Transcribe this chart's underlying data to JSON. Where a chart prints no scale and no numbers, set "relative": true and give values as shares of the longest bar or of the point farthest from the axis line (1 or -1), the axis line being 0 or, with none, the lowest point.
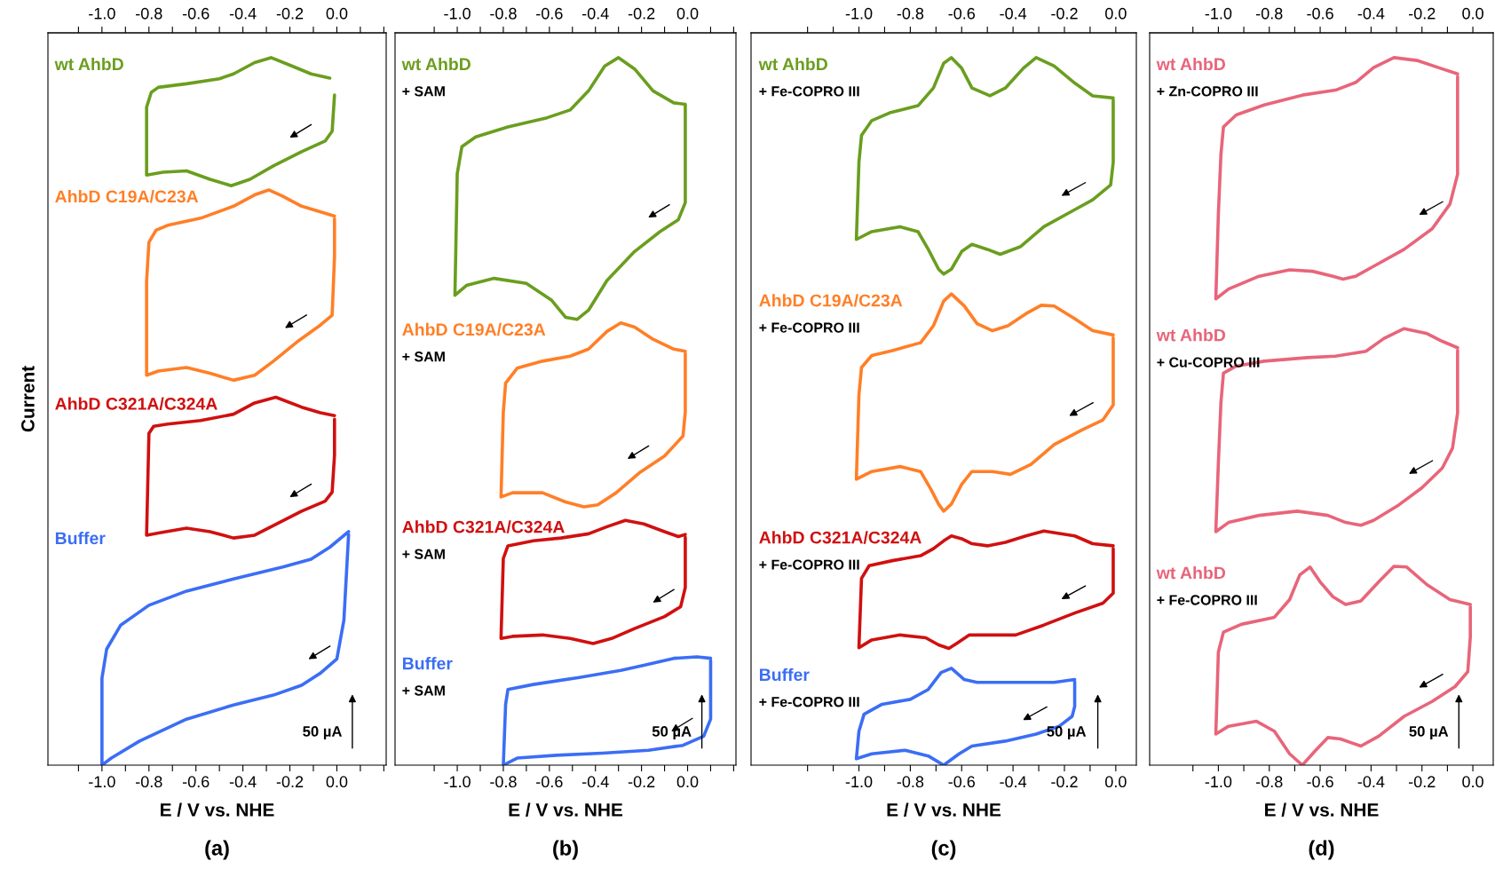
{
  "chart_data": [
    {
      "type": "line",
      "relative": true,
      "xlabel": "E / V vs. NHE",
      "ylabel": "Current",
      "xlim": [
        -1.23,
        0.21
      ],
      "x2lim": [
        -1.23,
        0.21
      ],
      "xticks": [
        {
          "value": -1.1,
          "label": null
        },
        {
          "value": -1,
          "label": "-1.0"
        },
        {
          "value": -0.9,
          "label": null
        },
        -0.8,
        {
          "value": -0.7,
          "label": null
        },
        -0.6,
        {
          "value": -0.5,
          "label": null
        },
        -0.4,
        {
          "value": -0.3,
          "label": null
        },
        -0.2,
        {
          "value": -0.1,
          "label": null
        },
        {
          "value": 0,
          "label": "0.0"
        },
        {
          "value": 0.1,
          "label": null
        },
        {
          "value": 0.2,
          "label": null
        }
      ],
      "x2ticks": [
        {
          "value": -1.1,
          "label": null
        },
        {
          "value": -1,
          "label": "-1.0"
        },
        {
          "value": -0.9,
          "label": null
        },
        -0.8,
        {
          "value": -0.7,
          "label": null
        },
        -0.6,
        {
          "value": -0.5,
          "label": null
        },
        -0.4,
        {
          "value": -0.3,
          "label": null
        },
        -0.2,
        {
          "value": -0.1,
          "label": null
        },
        {
          "value": 0,
          "label": "0.0"
        },
        {
          "value": 0.1,
          "label": null
        },
        {
          "value": 0.2,
          "label": null
        }
      ],
      "series": [
        {
          "name": "wt AhbD",
          "color": "#6a9e1f",
          "x": [
            -0.03,
            -0.11,
            -0.19,
            -0.28,
            -0.35,
            -0.44,
            -0.5,
            -0.64,
            -0.76,
            -0.79,
            -0.81,
            -0.81,
            -0.74,
            -0.64,
            -0.54,
            -0.45,
            -0.37,
            -0.27,
            -0.15,
            -0.05,
            -0.02,
            -0.01
          ],
          "values": [
            0.971,
            0.977,
            0.988,
            1.0,
            0.993,
            0.977,
            0.97,
            0.963,
            0.958,
            0.951,
            0.93,
            0.834,
            0.838,
            0.84,
            0.828,
            0.819,
            0.828,
            0.847,
            0.867,
            0.882,
            0.896,
            0.947
          ]
        },
        {
          "name": "AhbD C19A/C23A",
          "color": "#ff7f27",
          "x": [
            -0.01,
            -0.05,
            -0.15,
            -0.23,
            -0.29,
            -0.35,
            -0.44,
            -0.58,
            -0.72,
            -0.77,
            -0.8,
            -0.81,
            -0.81,
            -0.76,
            -0.64,
            -0.54,
            -0.44,
            -0.35,
            -0.27,
            -0.17,
            -0.07,
            -0.02,
            -0.01,
            -0.01
          ],
          "values": [
            0.776,
            0.78,
            0.79,
            0.804,
            0.813,
            0.806,
            0.79,
            0.773,
            0.763,
            0.756,
            0.739,
            0.684,
            0.551,
            0.557,
            0.562,
            0.554,
            0.544,
            0.551,
            0.571,
            0.598,
            0.622,
            0.636,
            0.718,
            0.772
          ]
        },
        {
          "name": "AhbD C321A/C324A",
          "color": "#d01010",
          "x": [
            -0.01,
            -0.07,
            -0.15,
            -0.26,
            -0.35,
            -0.44,
            -0.58,
            -0.72,
            -0.78,
            -0.8,
            -0.81,
            -0.76,
            -0.64,
            -0.54,
            -0.44,
            -0.35,
            -0.25,
            -0.15,
            -0.05,
            -0.02,
            -0.01,
            -0.01
          ],
          "values": [
            0.494,
            0.498,
            0.506,
            0.52,
            0.512,
            0.496,
            0.487,
            0.482,
            0.479,
            0.469,
            0.325,
            0.328,
            0.335,
            0.33,
            0.321,
            0.325,
            0.342,
            0.359,
            0.373,
            0.386,
            0.438,
            0.489
          ]
        },
        {
          "name": "Buffer",
          "color": "#3b6ef5",
          "x": [
            0.05,
            -0.03,
            -0.11,
            -0.23,
            -0.44,
            -0.64,
            -0.8,
            -0.92,
            -0.98,
            -1.0,
            -1.0,
            -0.96,
            -0.84,
            -0.64,
            -0.44,
            -0.27,
            -0.15,
            -0.07,
            0.0,
            0.03,
            0.05
          ],
          "values": [
            0.33,
            0.308,
            0.291,
            0.28,
            0.263,
            0.246,
            0.226,
            0.198,
            0.164,
            0.123,
            0,
            0.01,
            0.034,
            0.065,
            0.085,
            0.099,
            0.113,
            0.13,
            0.15,
            0.205,
            0.326
          ]
        }
      ],
      "annotations": [
        "50 µA",
        "(a)"
      ]
    },
    {
      "type": "line",
      "relative": true,
      "xlabel": "E / V vs. NHE",
      "xlim": [
        -1.27,
        0.21
      ],
      "x2lim": [
        -1.27,
        0.21
      ],
      "xticks": [
        {
          "value": -1.1,
          "label": null
        },
        {
          "value": -1,
          "label": "-1.0"
        },
        {
          "value": -0.9,
          "label": null
        },
        -0.8,
        {
          "value": -0.7,
          "label": null
        },
        -0.6,
        {
          "value": -0.5,
          "label": null
        },
        -0.4,
        {
          "value": -0.3,
          "label": null
        },
        -0.2,
        {
          "value": -0.1,
          "label": null
        },
        {
          "value": 0,
          "label": "0.0"
        },
        {
          "value": 0.1,
          "label": null
        },
        {
          "value": 0.2,
          "label": null
        }
      ],
      "x2ticks": [
        {
          "value": -1.1,
          "label": null
        },
        {
          "value": -1,
          "label": "-1.0"
        },
        {
          "value": -0.9,
          "label": null
        },
        -0.8,
        {
          "value": -0.7,
          "label": null
        },
        -0.6,
        {
          "value": -0.5,
          "label": null
        },
        -0.4,
        {
          "value": -0.3,
          "label": null
        },
        -0.2,
        {
          "value": -0.1,
          "label": null
        },
        {
          "value": 0,
          "label": "0.0"
        },
        {
          "value": 0.1,
          "label": null
        },
        {
          "value": 0.2,
          "label": null
        }
      ],
      "series": [
        {
          "name": "wt AhbD\n+ SAM",
          "color": "#6a9e1f",
          "x": [
            -0.01,
            -0.06,
            -0.15,
            -0.23,
            -0.3,
            -0.36,
            -0.43,
            -0.51,
            -0.61,
            -0.78,
            -0.92,
            -0.98,
            -1.0,
            -1.01,
            -0.96,
            -0.84,
            -0.7,
            -0.59,
            -0.53,
            -0.48,
            -0.43,
            -0.35,
            -0.23,
            -0.12,
            -0.04,
            -0.01,
            -0.01,
            -0.01
          ],
          "values": [
            0.934,
            0.936,
            0.953,
            0.984,
            1.0,
            0.988,
            0.953,
            0.926,
            0.915,
            0.902,
            0.888,
            0.874,
            0.836,
            0.664,
            0.678,
            0.688,
            0.681,
            0.657,
            0.633,
            0.63,
            0.643,
            0.685,
            0.726,
            0.754,
            0.771,
            0.795,
            0.871,
            0.933
          ]
        },
        {
          "name": "AhbD C19A/C23A\n+ SAM",
          "color": "#ff7f27",
          "x": [
            -0.01,
            -0.06,
            -0.15,
            -0.23,
            -0.29,
            -0.35,
            -0.43,
            -0.51,
            -0.63,
            -0.74,
            -0.79,
            -0.8,
            -0.81,
            -0.76,
            -0.63,
            -0.53,
            -0.45,
            -0.39,
            -0.31,
            -0.21,
            -0.1,
            -0.02,
            -0.01,
            -0.01
          ],
          "values": [
            0.585,
            0.588,
            0.602,
            0.619,
            0.625,
            0.613,
            0.588,
            0.578,
            0.571,
            0.561,
            0.54,
            0.499,
            0.379,
            0.385,
            0.385,
            0.372,
            0.365,
            0.368,
            0.385,
            0.413,
            0.437,
            0.465,
            0.499,
            0.582
          ]
        },
        {
          "name": "AhbD C321A/C324A\n+ SAM",
          "color": "#d01010",
          "x": [
            -0.01,
            -0.04,
            -0.1,
            -0.19,
            -0.27,
            -0.35,
            -0.43,
            -0.55,
            -0.67,
            -0.78,
            -0.8,
            -0.81,
            -0.76,
            -0.63,
            -0.51,
            -0.41,
            -0.33,
            -0.23,
            -0.1,
            -0.03,
            -0.01,
            -0.01
          ],
          "values": [
            0.326,
            0.323,
            0.33,
            0.341,
            0.346,
            0.337,
            0.327,
            0.321,
            0.317,
            0.31,
            0.292,
            0.179,
            0.182,
            0.184,
            0.179,
            0.172,
            0.179,
            0.193,
            0.21,
            0.224,
            0.251,
            0.322
          ]
        },
        {
          "name": "Buffer\n+ SAM",
          "color": "#3b6ef5",
          "x": [
            0.1,
            0.04,
            -0.06,
            -0.19,
            -0.29,
            -0.47,
            -0.67,
            -0.78,
            -0.79,
            -0.8,
            -0.74,
            -0.57,
            -0.37,
            -0.17,
            -0.02,
            0.07,
            0.1,
            0.1
          ],
          "values": [
            0.151,
            0.153,
            0.151,
            0.141,
            0.134,
            0.124,
            0.114,
            0.107,
            0.086,
            0,
            0.01,
            0.014,
            0.017,
            0.021,
            0.028,
            0.041,
            0.065,
            0.148
          ]
        }
      ],
      "annotations": [
        "50 µA",
        "(b)"
      ]
    },
    {
      "type": "line",
      "relative": true,
      "xlabel": "E / V vs. NHE",
      "xlim": [
        -1.42,
        0.08
      ],
      "x2lim": [
        -1.42,
        0.08
      ],
      "xticks": [
        {
          "value": -1.2,
          "label": null
        },
        {
          "value": -1.1,
          "label": null
        },
        {
          "value": -1,
          "label": "-1.0"
        },
        {
          "value": -0.9,
          "label": null
        },
        -0.8,
        {
          "value": -0.7,
          "label": null
        },
        -0.6,
        {
          "value": -0.5,
          "label": null
        },
        -0.4,
        {
          "value": -0.3,
          "label": null
        },
        -0.2,
        {
          "value": -0.1,
          "label": null
        },
        {
          "value": 0,
          "label": "0.0"
        }
      ],
      "x2ticks": [
        {
          "value": -1.2,
          "label": null
        },
        {
          "value": -1.1,
          "label": null
        },
        {
          "value": -1,
          "label": "-1.0"
        },
        {
          "value": -0.9,
          "label": null
        },
        -0.8,
        {
          "value": -0.7,
          "label": null
        },
        -0.6,
        {
          "value": -0.5,
          "label": null
        },
        -0.4,
        {
          "value": -0.3,
          "label": null
        },
        -0.2,
        {
          "value": -0.1,
          "label": null
        },
        {
          "value": 0,
          "label": "0.0"
        }
      ],
      "series": [
        {
          "name": "wt AhbD\n+ Fe-COPRO III",
          "color": "#6a9e1f",
          "x": [
            -0.01,
            -0.09,
            -0.16,
            -0.24,
            -0.31,
            -0.36,
            -0.43,
            -0.49,
            -0.56,
            -0.6,
            -0.64,
            -0.67,
            -0.71,
            -0.77,
            -0.88,
            -0.95,
            -0.99,
            -1.0,
            -1.01,
            -0.95,
            -0.84,
            -0.77,
            -0.73,
            -0.69,
            -0.67,
            -0.64,
            -0.6,
            -0.56,
            -0.5,
            -0.45,
            -0.37,
            -0.28,
            -0.16,
            -0.09,
            -0.02,
            -0.01,
            -0.01
          ],
          "values": [
            0.943,
            0.946,
            0.964,
            0.988,
            1.0,
            0.985,
            0.957,
            0.946,
            0.957,
            0.985,
            1.0,
            0.992,
            0.957,
            0.932,
            0.922,
            0.911,
            0.89,
            0.852,
            0.743,
            0.754,
            0.761,
            0.754,
            0.729,
            0.701,
            0.694,
            0.701,
            0.726,
            0.736,
            0.729,
            0.722,
            0.733,
            0.761,
            0.785,
            0.799,
            0.82,
            0.852,
            0.94
          ]
        },
        {
          "name": "AhbD C19A/C23A\n+ Fe-COPRO III",
          "color": "#ff7f27",
          "x": [
            -0.01,
            -0.09,
            -0.16,
            -0.24,
            -0.29,
            -0.35,
            -0.42,
            -0.48,
            -0.54,
            -0.59,
            -0.64,
            -0.67,
            -0.71,
            -0.76,
            -0.87,
            -0.95,
            -0.99,
            -1.0,
            -1.01,
            -0.95,
            -0.84,
            -0.76,
            -0.72,
            -0.69,
            -0.67,
            -0.64,
            -0.6,
            -0.56,
            -0.48,
            -0.41,
            -0.33,
            -0.24,
            -0.13,
            -0.05,
            -0.01,
            -0.01
          ],
          "values": [
            0.608,
            0.614,
            0.631,
            0.649,
            0.65,
            0.638,
            0.621,
            0.614,
            0.624,
            0.649,
            0.666,
            0.656,
            0.621,
            0.597,
            0.586,
            0.579,
            0.562,
            0.523,
            0.404,
            0.415,
            0.422,
            0.415,
            0.39,
            0.369,
            0.359,
            0.369,
            0.397,
            0.415,
            0.415,
            0.411,
            0.425,
            0.453,
            0.474,
            0.488,
            0.509,
            0.604
          ]
        },
        {
          "name": "AhbD C321A/C324A\n+ Fe-COPRO III",
          "color": "#d01010",
          "x": [
            -0.01,
            -0.09,
            -0.16,
            -0.28,
            -0.35,
            -0.43,
            -0.5,
            -0.56,
            -0.6,
            -0.64,
            -0.67,
            -0.71,
            -0.76,
            -0.87,
            -0.96,
            -0.99,
            -1.0,
            -0.95,
            -0.84,
            -0.74,
            -0.69,
            -0.65,
            -0.62,
            -0.57,
            -0.5,
            -0.39,
            -0.28,
            -0.16,
            -0.05,
            -0.01,
            -0.01
          ],
          "values": [
            0.31,
            0.313,
            0.324,
            0.331,
            0.324,
            0.315,
            0.31,
            0.313,
            0.32,
            0.324,
            0.317,
            0.306,
            0.296,
            0.289,
            0.282,
            0.264,
            0.166,
            0.177,
            0.184,
            0.18,
            0.17,
            0.165,
            0.172,
            0.184,
            0.184,
            0.184,
            0.198,
            0.215,
            0.229,
            0.243,
            0.306
          ]
        },
        {
          "name": "Buffer\n+ Fe-COPRO III",
          "color": "#3b6ef5",
          "x": [
            -0.16,
            -0.24,
            -0.39,
            -0.54,
            -0.59,
            -0.64,
            -0.68,
            -0.73,
            -0.8,
            -0.91,
            -0.98,
            -1.0,
            -1.01,
            -0.95,
            -0.82,
            -0.73,
            -0.67,
            -0.61,
            -0.56,
            -0.43,
            -0.31,
            -0.22,
            -0.17,
            -0.16,
            -0.16
          ],
          "values": [
            0.121,
            0.117,
            0.117,
            0.117,
            0.121,
            0.137,
            0.131,
            0.107,
            0.093,
            0.086,
            0.072,
            0.048,
            0.009,
            0.016,
            0.021,
            0.013,
            0,
            0.016,
            0.027,
            0.034,
            0.044,
            0.055,
            0.069,
            0.083,
            0.118
          ]
        }
      ],
      "annotations": [
        "50 µA",
        "(c)"
      ]
    },
    {
      "type": "line",
      "relative": true,
      "xlabel": "E / V vs. NHE",
      "xlim": [
        -1.27,
        0.08
      ],
      "x2lim": [
        -1.27,
        0.08
      ],
      "xticks": [
        {
          "value": -1.1,
          "label": null
        },
        {
          "value": -1,
          "label": "-1.0"
        },
        {
          "value": -0.9,
          "label": null
        },
        -0.8,
        {
          "value": -0.7,
          "label": null
        },
        -0.6,
        {
          "value": -0.5,
          "label": null
        },
        -0.4,
        {
          "value": -0.3,
          "label": null
        },
        -0.2,
        {
          "value": -0.1,
          "label": null
        },
        {
          "value": 0,
          "label": "0.0"
        }
      ],
      "x2ticks": [
        {
          "value": -1.1,
          "label": null
        },
        {
          "value": -1,
          "label": "-1.0"
        },
        {
          "value": -0.9,
          "label": null
        },
        -0.8,
        {
          "value": -0.7,
          "label": null
        },
        -0.6,
        {
          "value": -0.5,
          "label": null
        },
        -0.4,
        {
          "value": -0.3,
          "label": null
        },
        -0.2,
        {
          "value": -0.1,
          "label": null
        },
        {
          "value": 0,
          "label": "0.0"
        }
      ],
      "series": [
        {
          "name": "wt AhbD\n+ Zn-COPRO III",
          "color": "#e8657a",
          "x": [
            -0.06,
            -0.12,
            -0.22,
            -0.31,
            -0.39,
            -0.46,
            -0.54,
            -0.67,
            -0.82,
            -0.93,
            -0.98,
            -0.99,
            -1.0,
            -1.01,
            -0.96,
            -0.84,
            -0.72,
            -0.63,
            -0.55,
            -0.51,
            -0.46,
            -0.39,
            -0.27,
            -0.16,
            -0.09,
            -0.06,
            -0.06,
            -0.06
          ],
          "values": [
            0.977,
            0.984,
            0.996,
            1.0,
            0.986,
            0.965,
            0.954,
            0.947,
            0.933,
            0.919,
            0.902,
            0.863,
            0.779,
            0.659,
            0.673,
            0.691,
            0.7,
            0.698,
            0.691,
            0.687,
            0.691,
            0.705,
            0.729,
            0.758,
            0.793,
            0.835,
            0.919,
            0.973
          ]
        },
        {
          "name": "wt AhbD\n+ Cu-COPRO III",
          "color": "#e8657a",
          "x": [
            -0.06,
            -0.12,
            -0.18,
            -0.27,
            -0.35,
            -0.42,
            -0.54,
            -0.65,
            -0.82,
            -0.93,
            -0.98,
            -0.99,
            -1.0,
            -1.01,
            -0.96,
            -0.84,
            -0.69,
            -0.57,
            -0.5,
            -0.44,
            -0.39,
            -0.29,
            -0.2,
            -0.12,
            -0.08,
            -0.06,
            -0.06
          ],
          "values": [
            0.59,
            0.599,
            0.61,
            0.617,
            0.603,
            0.585,
            0.578,
            0.576,
            0.571,
            0.564,
            0.554,
            0.512,
            0.427,
            0.33,
            0.343,
            0.353,
            0.359,
            0.353,
            0.343,
            0.339,
            0.346,
            0.368,
            0.392,
            0.42,
            0.448,
            0.498,
            0.586
          ]
        },
        {
          "name": "wt AhbD\n+ Fe-COPRO III",
          "color": "#e8657a",
          "x": [
            -0.01,
            -0.09,
            -0.18,
            -0.26,
            -0.31,
            -0.37,
            -0.44,
            -0.5,
            -0.55,
            -0.6,
            -0.64,
            -0.68,
            -0.72,
            -0.78,
            -0.91,
            -0.98,
            -1.0,
            -1.01,
            -0.96,
            -0.85,
            -0.78,
            -0.72,
            -0.67,
            -0.62,
            -0.57,
            -0.52,
            -0.44,
            -0.37,
            -0.27,
            -0.16,
            -0.07,
            -0.02,
            -0.01,
            -0.01
          ],
          "values": [
            0.227,
            0.234,
            0.255,
            0.28,
            0.281,
            0.259,
            0.232,
            0.227,
            0.238,
            0.259,
            0.28,
            0.269,
            0.234,
            0.209,
            0.199,
            0.188,
            0.16,
            0.044,
            0.055,
            0.062,
            0.048,
            0.016,
            0,
            0.02,
            0.039,
            0.037,
            0.027,
            0.041,
            0.069,
            0.09,
            0.111,
            0.132,
            0.181,
            0.224
          ]
        }
      ],
      "annotations": [
        "50 µA",
        "(d)"
      ]
    }
  ]
}
